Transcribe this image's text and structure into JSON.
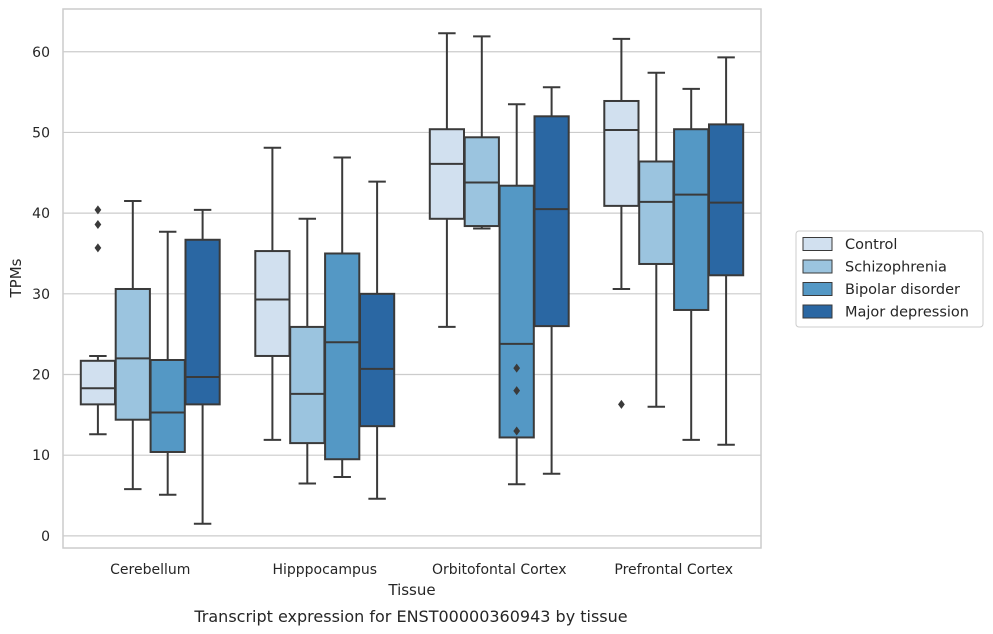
{
  "chart_data": {
    "type": "box",
    "title": "",
    "caption": "Transcript expression for ENST00000360943 by tissue",
    "xlabel": "Tissue",
    "ylabel": "TPMs",
    "ylim": [
      -1.5,
      65.3
    ],
    "yticks": [
      0,
      10,
      20,
      30,
      40,
      50,
      60
    ],
    "grid": "horizontal",
    "legend_position": "right-outside",
    "categories": [
      "Cerebellum",
      "Hipppocampus",
      "Orbitofontal Cortex",
      "Prefrontal Cortex"
    ],
    "series": [
      {
        "name": "Control",
        "color": "#d1e0ef",
        "boxes": [
          {
            "whislo": 12.6,
            "q1": 16.3,
            "med": 18.3,
            "q3": 21.7,
            "whishi": 22.3,
            "fliers": [
              35.7,
              38.6,
              40.4
            ]
          },
          {
            "whislo": 11.9,
            "q1": 22.3,
            "med": 29.3,
            "q3": 35.3,
            "whishi": 48.1,
            "fliers": []
          },
          {
            "whislo": 25.9,
            "q1": 39.3,
            "med": 46.1,
            "q3": 50.4,
            "whishi": 62.3,
            "fliers": []
          },
          {
            "whislo": 30.6,
            "q1": 40.9,
            "med": 50.3,
            "q3": 53.9,
            "whishi": 61.6,
            "fliers": [
              16.3
            ]
          }
        ]
      },
      {
        "name": "Schizophrenia",
        "color": "#9bc4df",
        "boxes": [
          {
            "whislo": 5.8,
            "q1": 14.4,
            "med": 22.0,
            "q3": 30.6,
            "whishi": 41.5,
            "fliers": []
          },
          {
            "whislo": 6.5,
            "q1": 11.5,
            "med": 17.6,
            "q3": 25.9,
            "whishi": 39.3,
            "fliers": []
          },
          {
            "whislo": 38.1,
            "q1": 38.4,
            "med": 43.8,
            "q3": 49.4,
            "whishi": 61.9,
            "fliers": []
          },
          {
            "whislo": 16.0,
            "q1": 33.7,
            "med": 41.4,
            "q3": 46.4,
            "whishi": 57.4,
            "fliers": []
          }
        ]
      },
      {
        "name": "Bipolar disorder",
        "color": "#5498c5",
        "boxes": [
          {
            "whislo": 5.1,
            "q1": 10.4,
            "med": 15.3,
            "q3": 21.8,
            "whishi": 37.7,
            "fliers": []
          },
          {
            "whislo": 7.3,
            "q1": 9.5,
            "med": 24.0,
            "q3": 35.0,
            "whishi": 46.9,
            "fliers": []
          },
          {
            "whislo": 6.4,
            "q1": 12.2,
            "med": 23.8,
            "q3": 43.4,
            "whishi": 53.5,
            "fliers": [
              13.0,
              18.0,
              20.8
            ]
          },
          {
            "whislo": 11.9,
            "q1": 28.0,
            "med": 42.3,
            "q3": 50.4,
            "whishi": 55.4,
            "fliers": []
          }
        ]
      },
      {
        "name": "Major depression",
        "color": "#2a67a3",
        "boxes": [
          {
            "whislo": 1.5,
            "q1": 16.3,
            "med": 19.7,
            "q3": 36.7,
            "whishi": 40.4,
            "fliers": []
          },
          {
            "whislo": 4.6,
            "q1": 13.6,
            "med": 20.7,
            "q3": 30.0,
            "whishi": 43.9,
            "fliers": []
          },
          {
            "whislo": 7.7,
            "q1": 26.0,
            "med": 40.5,
            "q3": 52.0,
            "whishi": 55.6,
            "fliers": []
          },
          {
            "whislo": 11.3,
            "q1": 32.3,
            "med": 41.3,
            "q3": 51.0,
            "whishi": 59.3,
            "fliers": []
          }
        ]
      }
    ]
  }
}
